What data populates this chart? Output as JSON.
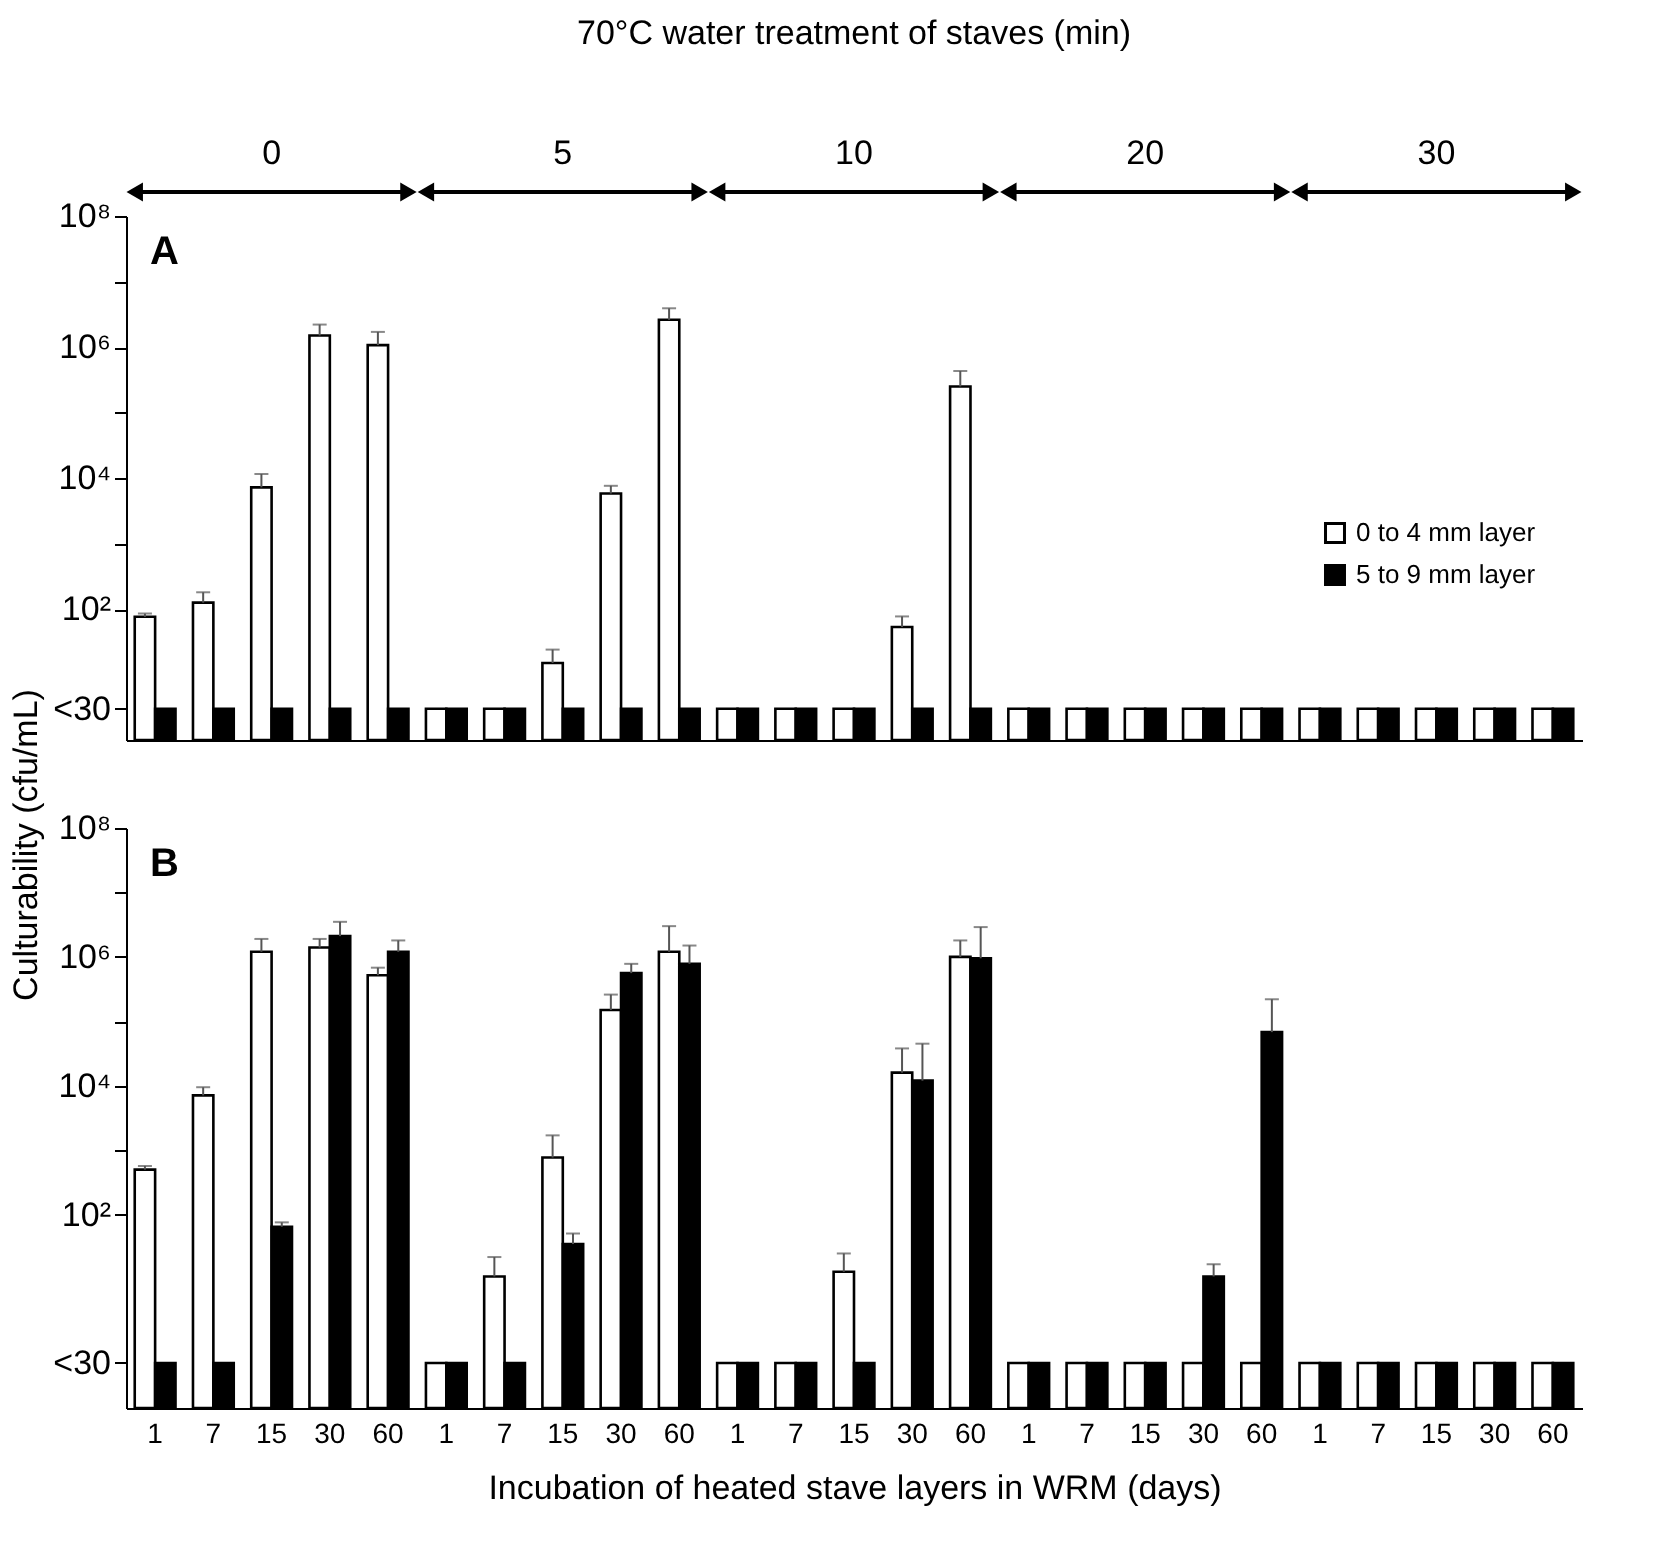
{
  "chart_data": [
    {
      "type": "bar",
      "title": "70°C water treatment of staves (min)",
      "ylabel": "Culturability (cfu/mL)",
      "annotations": [
        "A",
        "0",
        "5",
        "10",
        "20",
        "30"
      ],
      "categories": [
        "1",
        "7",
        "15",
        "30",
        "60",
        "1",
        "7",
        "15",
        "30",
        "60",
        "1",
        "7",
        "15",
        "30",
        "60",
        "1",
        "7",
        "15",
        "30",
        "60",
        "1",
        "7",
        "15",
        "30",
        "60"
      ],
      "series": [
        {
          "name": "0 to 4 mm layer",
          "color": "#ffffff",
          "values": [
            76,
            125,
            7200,
            1500000,
            1070000,
            3,
            3,
            15,
            5800,
            2600000,
            3,
            3,
            3,
            53,
            250000,
            3,
            3,
            3,
            3,
            3,
            3,
            3,
            3,
            3,
            3
          ],
          "errors": [
            [
              76,
              85
            ],
            [
              125,
              180
            ],
            [
              7200,
              11500
            ],
            [
              1500000,
              2200000
            ],
            [
              1070000,
              1700000
            ],
            null,
            null,
            [
              15,
              24
            ],
            [
              5800,
              7600
            ],
            [
              2600000,
              3900000
            ],
            null,
            null,
            null,
            [
              53,
              77
            ],
            [
              250000,
              430000
            ],
            null,
            null,
            null,
            null,
            null,
            null,
            null,
            null,
            null,
            null
          ]
        },
        {
          "name": "5 to 9 mm layer",
          "color": "#000000",
          "values": [
            3,
            3,
            3,
            3,
            3,
            3,
            3,
            3,
            3,
            3,
            3,
            3,
            3,
            3,
            3,
            3,
            3,
            3,
            3,
            3,
            3,
            3,
            3,
            3,
            3
          ]
        }
      ],
      "log": true,
      "ylim": [
        1,
        100000000
      ],
      "yticks": [
        {
          "value": 100000000,
          "label": "10⁸"
        },
        {
          "value": 10000000,
          "label": null
        },
        {
          "value": 1000000,
          "label": "10⁶"
        },
        {
          "value": 100000,
          "label": null
        },
        {
          "value": 10000,
          "label": "10⁴"
        },
        {
          "value": 1000,
          "label": null
        },
        {
          "value": 100,
          "label": "10²"
        },
        {
          "value": 3,
          "label": "<30"
        }
      ],
      "legend": "right",
      "tick_labels": "y"
    },
    {
      "type": "bar",
      "xlabel": "Incubation of heated stave layers in WRM (days)",
      "annotations": [
        "B"
      ],
      "categories": [
        "1",
        "7",
        "15",
        "30",
        "60",
        "1",
        "7",
        "15",
        "30",
        "60",
        "1",
        "7",
        "15",
        "30",
        "60",
        "1",
        "7",
        "15",
        "30",
        "60",
        "1",
        "7",
        "15",
        "30",
        "60"
      ],
      "series": [
        {
          "color": "#ffffff",
          "values": [
            500,
            7100,
            1200000,
            1400000,
            520000,
            0.5,
            11,
            770,
            150000,
            1200000,
            0.5,
            0.5,
            13,
            16000,
            1000000,
            0.5,
            0.5,
            0.5,
            0.5,
            0.5,
            0.5,
            0.5,
            0.5,
            0.5,
            0.5
          ],
          "errors": [
            [
              500,
              570
            ],
            [
              7100,
              9500
            ],
            [
              1200000,
              1900000
            ],
            [
              1400000,
              1900000
            ],
            [
              520000,
              680000
            ],
            null,
            [
              11,
              22
            ],
            [
              770,
              1700
            ],
            [
              150000,
              260000
            ],
            [
              1200000,
              3000000
            ],
            null,
            null,
            [
              13,
              25
            ],
            [
              16000,
              38000
            ],
            [
              1000000,
              1800000
            ],
            null,
            null,
            null,
            null,
            null,
            null,
            null,
            null,
            null,
            null
          ]
        },
        {
          "color": "#000000",
          "values": [
            0.5,
            0.5,
            65,
            2100000,
            1200000,
            0.5,
            0.5,
            35,
            560000,
            780000,
            0.5,
            0.5,
            0.5,
            12000,
            950000,
            0.5,
            0.5,
            0.5,
            11,
            68000,
            0.5,
            0.5,
            0.5,
            0.5,
            0.5
          ],
          "errors": [
            null,
            null,
            [
              65,
              76
            ],
            [
              2100000,
              3500000
            ],
            [
              1200000,
              1800000
            ],
            null,
            null,
            [
              35,
              51
            ],
            [
              560000,
              780000
            ],
            [
              780000,
              1500000
            ],
            null,
            null,
            null,
            [
              12000,
              45000
            ],
            [
              950000,
              2900000
            ],
            null,
            null,
            null,
            [
              11,
              17
            ],
            [
              68000,
              220000
            ],
            null,
            null,
            null,
            null,
            null
          ]
        }
      ],
      "log": true,
      "ylim": [
        0.1,
        100000000
      ],
      "yticks": [
        {
          "value": 100000000,
          "label": "10⁸"
        },
        {
          "value": 10000000,
          "label": null
        },
        {
          "value": 1000000,
          "label": "10⁶"
        },
        {
          "value": 100000,
          "label": null
        },
        {
          "value": 10000,
          "label": "10⁴"
        },
        {
          "value": 1000,
          "label": null
        },
        {
          "value": 100,
          "label": "10²"
        },
        {
          "value": 0.5,
          "label": "<30"
        }
      ]
    }
  ]
}
